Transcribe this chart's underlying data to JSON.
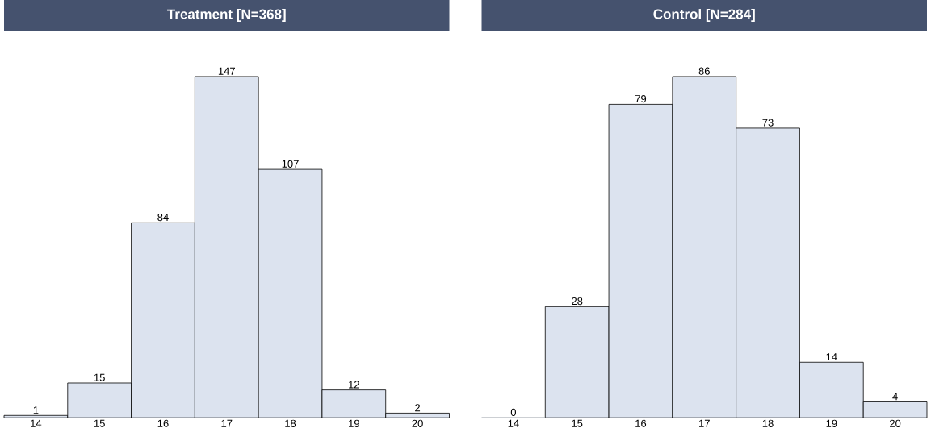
{
  "chart_data": [
    {
      "type": "bar",
      "title": "Treatment [N=368]",
      "categories": [
        "14",
        "15",
        "16",
        "17",
        "18",
        "19",
        "20"
      ],
      "values": [
        1,
        15,
        84,
        147,
        107,
        12,
        2
      ],
      "color": "#dce3ef",
      "data_labels": true
    },
    {
      "type": "bar",
      "title": "Control [N=284]",
      "categories": [
        "14",
        "15",
        "16",
        "17",
        "18",
        "19",
        "20"
      ],
      "values": [
        0,
        28,
        79,
        86,
        73,
        14,
        4
      ],
      "color": "#dce3ef",
      "data_labels": true
    }
  ]
}
